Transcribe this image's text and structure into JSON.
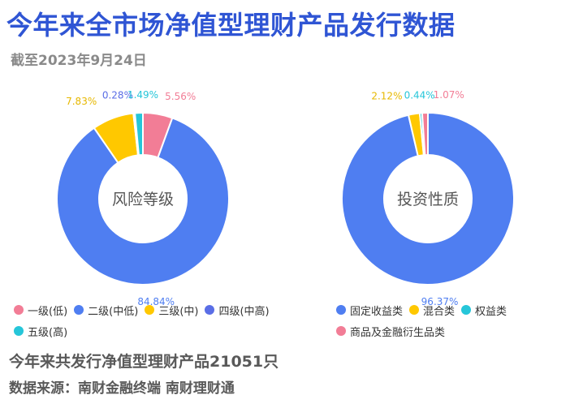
{
  "title": "今年来全市场净值型理财产品发行数据",
  "subtitle": "截至2023年9月24日",
  "chart_data": [
    {
      "type": "pie",
      "center_label": "风险等级",
      "categories": [
        "一级(低)",
        "二级(中低)",
        "三级(中)",
        "四级(中高)",
        "五级(高)"
      ],
      "values": [
        5.56,
        84.84,
        7.83,
        0.28,
        1.49
      ],
      "labels": [
        "5.56%",
        "84.84%",
        "7.83%",
        "0.28%",
        "1.49%"
      ],
      "colors": [
        "#f27d96",
        "#4f7ef1",
        "#ffc800",
        "#5a6ee6",
        "#26c6d9"
      ],
      "label_colors": [
        "#f27d96",
        "#4f7ef1",
        "#e7b800",
        "#5a6ee6",
        "#26c6d9"
      ]
    },
    {
      "type": "pie",
      "center_label": "投资性质",
      "categories": [
        "固定收益类",
        "混合类",
        "权益类",
        "商品及金融衍生品类"
      ],
      "values": [
        96.37,
        2.12,
        0.44,
        1.07
      ],
      "labels": [
        "96.37%",
        "2.12%",
        "0.44%",
        "1.07%"
      ],
      "colors": [
        "#4f7ef1",
        "#ffc800",
        "#26c6d9",
        "#f27d96"
      ],
      "label_colors": [
        "#4f7ef1",
        "#e7b800",
        "#26c6d9",
        "#f27d96"
      ]
    }
  ],
  "footer": {
    "total": "今年来共发行净值型理财产品21051只",
    "source": "数据来源：南财金融终端 南财理财通"
  }
}
